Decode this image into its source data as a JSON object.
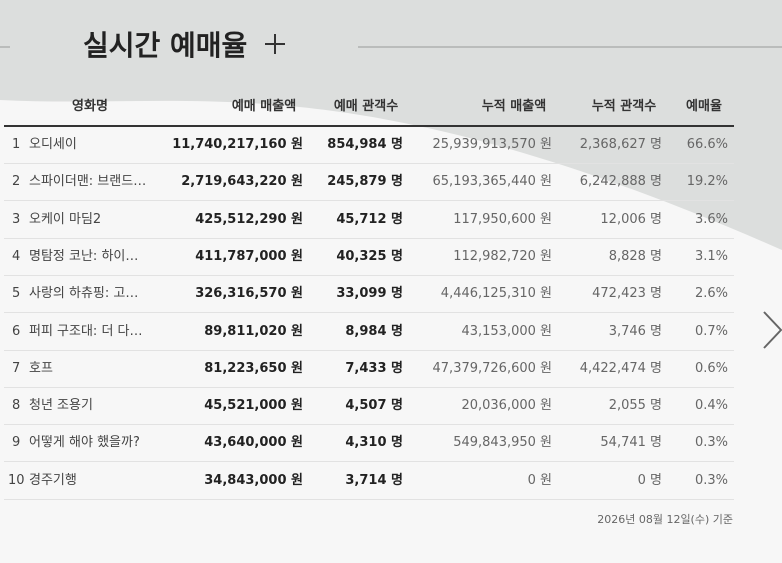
{
  "header": {
    "title": "실시간 예매율"
  },
  "table": {
    "columns": [
      "영화명",
      "예매 매출액",
      "예매 관객수",
      "누적 매출액",
      "누적 관객수",
      "예매율"
    ],
    "rows": [
      [
        "1",
        "오디세이",
        "11,740,217,160 원",
        "854,984 명",
        "25,939,913,570 원",
        "2,368,627 명",
        "66.6%"
      ],
      [
        "2",
        "스파이더맨: 브랜드…",
        "2,719,643,220 원",
        "245,879 명",
        "65,193,365,440 원",
        "6,242,888 명",
        "19.2%"
      ],
      [
        "3",
        "오케이 마딤2",
        "425,512,290 원",
        "45,712 명",
        "117,950,600 원",
        "12,006 명",
        "3.6%"
      ],
      [
        "4",
        "명탐정 코난: 하이…",
        "411,787,000 원",
        "40,325 명",
        "112,982,720 원",
        "8,828 명",
        "3.1%"
      ],
      [
        "5",
        "사랑의 하츄핑: 고…",
        "326,316,570 원",
        "33,099 명",
        "4,446,125,310 원",
        "472,423 명",
        "2.6%"
      ],
      [
        "6",
        "퍼피 구조대: 더 다…",
        "89,811,020 원",
        "8,984 명",
        "43,153,000 원",
        "3,746 명",
        "0.7%"
      ],
      [
        "7",
        "호프",
        "81,223,650 원",
        "7,433 명",
        "47,379,726,600 원",
        "4,422,474 명",
        "0.6%"
      ],
      [
        "8",
        "청년 조용기",
        "45,521,000 원",
        "4,507 명",
        "20,036,000 원",
        "2,055 명",
        "0.4%"
      ],
      [
        "9",
        "어떻게 해야 했을까?",
        "43,640,000 원",
        "4,310 명",
        "549,843,950 원",
        "54,741 명",
        "0.3%"
      ],
      [
        "10",
        "경주기행",
        "34,843,000 원",
        "3,714 명",
        "0 원",
        "0 명",
        "0.3%"
      ]
    ]
  },
  "footnote": "2026년 08월 12일(수) 기준"
}
